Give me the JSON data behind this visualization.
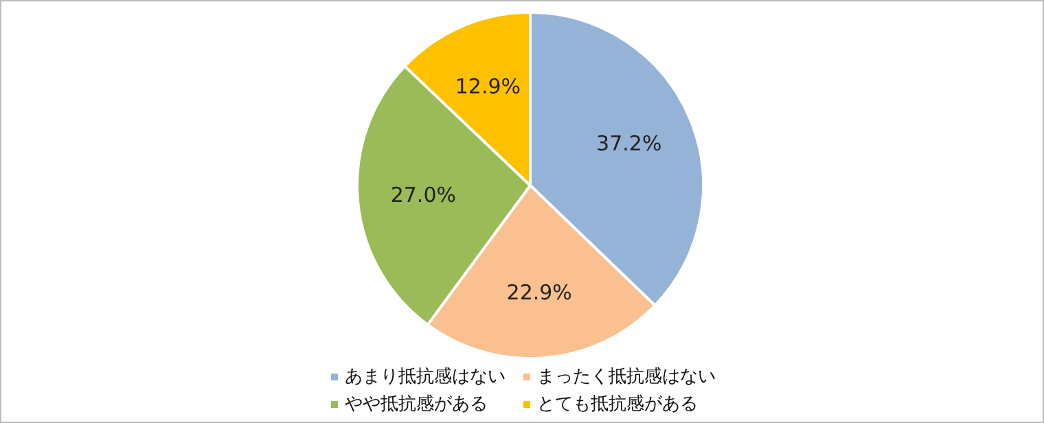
{
  "chart_data": {
    "type": "pie",
    "categories": [
      "あまり抵抗感はない",
      "まったく抵抗感はない",
      "やや抵抗感がある",
      "とても抵抗感がある"
    ],
    "values": [
      37.2,
      22.9,
      27.0,
      12.9
    ],
    "colors": [
      "#95b3d7",
      "#fac090",
      "#9bbb59",
      "#ffc000"
    ],
    "value_labels": [
      "37.2%",
      "22.9%",
      "27.0%",
      "12.9%"
    ],
    "legend": "bottom"
  }
}
